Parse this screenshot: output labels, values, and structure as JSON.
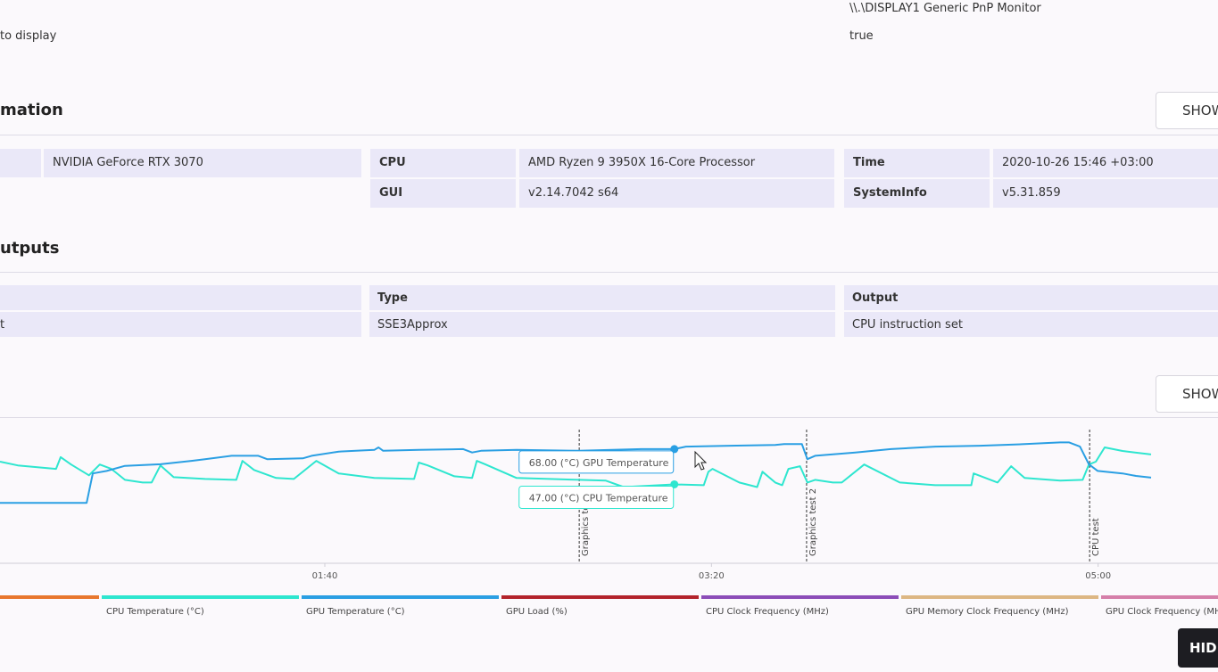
{
  "page": {
    "top_left": "to display",
    "display_name": "\\\\.\\DISPLAY1 Generic PnP Monitor",
    "display_value": "true",
    "section1": "mation",
    "show": "SHOW",
    "info": {
      "gpu": "NVIDIA GeForce RTX 3070",
      "cpu_label": "CPU",
      "cpu": "AMD Ryzen 9 3950X 16-Core Processor",
      "time_label": "Time",
      "time": "2020-10-26 15:46 +03:00",
      "gui_label": "GUI",
      "gui": "v2.14.7042 s64",
      "sysinfo_label": "SystemInfo",
      "sysinfo": "v5.31.859"
    },
    "section2": "utputs",
    "outputs": {
      "type_label": "Type",
      "output_label": "Output",
      "row_first": "t",
      "type": "SSE3Approx",
      "output": "CPU instruction set"
    },
    "hide": "HIDE"
  },
  "chart_data": {
    "type": "line",
    "xlim": [
      16,
      331
    ],
    "ylim": [
      0,
      86
    ],
    "xticks": [
      {
        "value": 100,
        "label": "01:40"
      },
      {
        "value": 200,
        "label": "03:20"
      },
      {
        "value": 300,
        "label": "05:00"
      }
    ],
    "series": [
      {
        "name": null,
        "color": "#e8772e"
      },
      {
        "name": "CPU Temperature (°C)",
        "color": "#2ee6cf",
        "x": [
          16,
          20.6,
          30.5,
          31.7,
          34.4,
          39,
          41.8,
          44.8,
          48.3,
          52.9,
          55.2,
          57.5,
          60.9,
          69,
          77.1,
          78.7,
          81.7,
          87.4,
          92,
          97.8,
          103.6,
          112.8,
          123.1,
          124.3,
          126.6,
          133.5,
          138.1,
          139.3,
          141.6,
          149.6,
          165.8,
          172.7,
          177.3,
          190.4,
          198,
          199.2,
          200.3,
          207.2,
          211.8,
          213.2,
          216.5,
          218.3,
          219.9,
          222.9,
          224.8,
          226.8,
          231.4,
          233.7,
          239.5,
          248.7,
          257.9,
          267.2,
          267.8,
          274,
          277.5,
          281,
          290.2,
          296,
          297.6,
          299.4,
          301.7,
          306.3,
          313.7
        ],
        "values": [
          60.5,
          58.3,
          56.2,
          63.2,
          58.8,
          52.4,
          58.8,
          56.2,
          49.7,
          48.1,
          48.1,
          58.3,
          51.3,
          50.2,
          49.7,
          61,
          55.6,
          50.8,
          50.2,
          61,
          53.5,
          50.8,
          50.2,
          60,
          58.3,
          51.8,
          50.8,
          61,
          58.8,
          50.8,
          49.7,
          49.2,
          45.4,
          47,
          46.5,
          54.5,
          56.2,
          48.1,
          45.4,
          54.5,
          48.1,
          46.5,
          56.2,
          57.8,
          48.1,
          49.7,
          48.1,
          48.1,
          58.8,
          48.1,
          46.5,
          46.5,
          53.5,
          48.1,
          57.8,
          50.8,
          49.2,
          49.7,
          58.8,
          60.5,
          69,
          66.9,
          64.8
        ]
      },
      {
        "name": "GPU Temperature (°C)",
        "color": "#2a9fe3",
        "x": [
          16,
          38.4,
          40,
          43.6,
          48.3,
          57.5,
          65.5,
          69,
          75.9,
          82.8,
          85.1,
          94.3,
          96.6,
          103.6,
          112.8,
          113.9,
          115.1,
          124.3,
          135.8,
          138.1,
          140.4,
          149.6,
          165.8,
          181.9,
          190.4,
          193.4,
          204.9,
          216.5,
          218.8,
          223.4,
          224.8,
          226.8,
          237.2,
          246.4,
          257.9,
          269.5,
          281,
          290.2,
          292.5,
          295.3,
          297.6,
          299.9,
          306.3,
          309.8,
          313.7
        ],
        "values": [
          36,
          36,
          53.5,
          55,
          58,
          59,
          61,
          62,
          64,
          64,
          62,
          62.5,
          64,
          66.5,
          67.5,
          69,
          67,
          67.5,
          68,
          66,
          67,
          67.5,
          67,
          68,
          68,
          69.5,
          70,
          70.5,
          71,
          71,
          62,
          64,
          66,
          68,
          69.5,
          70,
          71,
          72,
          72,
          69.5,
          59,
          55,
          53.5,
          52,
          51
        ]
      },
      {
        "name": "GPU Load (%)",
        "color": "#b3232b"
      },
      {
        "name": "CPU Clock Frequency (MHz)",
        "color": "#8c4db8"
      },
      {
        "name": "GPU Memory Clock Frequency (MHz)",
        "color": "#ddb783"
      },
      {
        "name": "GPU Clock Frequency (MHz)",
        "color": "#d57fa9"
      }
    ],
    "markers": [
      {
        "x": 165.8,
        "label": "Graphics test 1"
      },
      {
        "x": 224.6,
        "label": "Graphics test 2"
      },
      {
        "x": 297.8,
        "label": "CPU test"
      }
    ],
    "tooltips": [
      {
        "series": 2,
        "x": 190.4,
        "value": 68,
        "label": "68.00 (°C) GPU Temperature"
      },
      {
        "series": 1,
        "x": 190.4,
        "value": 47,
        "label": "47.00 (°C) CPU Temperature"
      }
    ]
  }
}
